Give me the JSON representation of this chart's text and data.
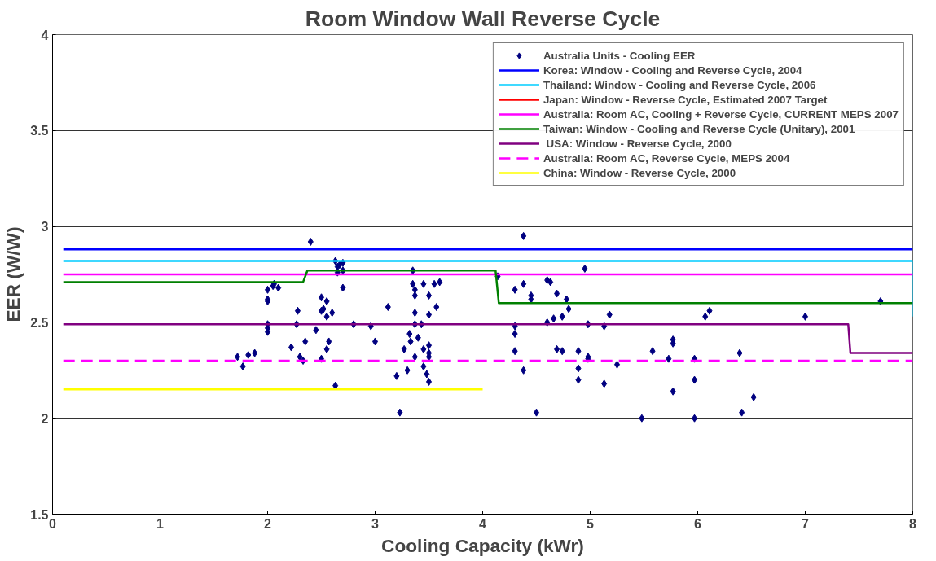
{
  "chart_data": {
    "type": "scatter",
    "title": "Room Window Wall Reverse Cycle",
    "xlabel": "Cooling Capacity (kWr)",
    "ylabel": "EER (W/W)",
    "xlim": [
      0,
      8
    ],
    "xticks": [
      0,
      1,
      2,
      3,
      4,
      5,
      6,
      7,
      8
    ],
    "ylim": [
      1.5,
      4
    ],
    "yticks": [
      1.5,
      2,
      2.5,
      3,
      3.5,
      4
    ],
    "grid": "y",
    "legend": "top right",
    "series": [
      {
        "name": "Australia Units - Cooling EER",
        "marker": "diamond",
        "color": "#000080",
        "x": [
          1.72,
          1.77,
          1.82,
          1.88,
          2.0,
          2.0,
          2.0,
          2.0,
          2.0,
          2.0,
          2.05,
          2.06,
          2.1,
          2.22,
          2.27,
          2.28,
          2.3,
          2.33,
          2.35,
          2.4,
          2.45,
          2.5,
          2.5,
          2.5,
          2.52,
          2.55,
          2.55,
          2.55,
          2.57,
          2.6,
          2.63,
          2.63,
          2.65,
          2.65,
          2.67,
          2.7,
          2.7,
          2.7,
          2.8,
          2.96,
          3.0,
          3.12,
          3.2,
          3.23,
          3.27,
          3.3,
          3.32,
          3.33,
          3.35,
          3.35,
          3.37,
          3.37,
          3.37,
          3.37,
          3.37,
          3.4,
          3.43,
          3.45,
          3.45,
          3.45,
          3.48,
          3.5,
          3.5,
          3.5,
          3.5,
          3.5,
          3.5,
          3.55,
          3.57,
          3.6,
          4.38,
          4.14,
          4.3,
          4.38,
          4.45,
          4.45,
          4.6,
          4.63,
          4.69,
          4.78,
          4.8,
          4.74,
          4.66,
          4.6,
          4.3,
          4.3,
          4.3,
          4.38,
          4.5,
          4.95,
          4.98,
          5.13,
          5.18,
          4.69,
          4.74,
          4.89,
          4.89,
          4.89,
          4.98,
          4.98,
          5.13,
          5.25,
          5.48,
          5.58,
          5.73,
          5.77,
          5.77,
          5.77,
          5.97,
          5.97,
          5.97,
          6.07,
          6.11,
          6.39,
          6.41,
          6.52,
          7.0,
          7.7
        ],
        "values": [
          2.32,
          2.27,
          2.33,
          2.34,
          2.45,
          2.47,
          2.49,
          2.61,
          2.62,
          2.67,
          2.69,
          2.7,
          2.68,
          2.37,
          2.49,
          2.56,
          2.32,
          2.3,
          2.4,
          2.92,
          2.46,
          2.31,
          2.56,
          2.63,
          2.57,
          2.61,
          2.53,
          2.36,
          2.4,
          2.55,
          2.17,
          2.82,
          2.76,
          2.79,
          2.8,
          2.81,
          2.77,
          2.68,
          2.49,
          2.48,
          2.4,
          2.58,
          2.22,
          2.03,
          2.36,
          2.25,
          2.44,
          2.4,
          2.77,
          2.7,
          2.64,
          2.67,
          2.55,
          2.49,
          2.32,
          2.42,
          2.49,
          2.27,
          2.36,
          2.7,
          2.23,
          2.19,
          2.32,
          2.34,
          2.38,
          2.54,
          2.64,
          2.7,
          2.58,
          2.71,
          2.95,
          2.74,
          2.67,
          2.7,
          2.64,
          2.62,
          2.72,
          2.71,
          2.65,
          2.62,
          2.57,
          2.53,
          2.52,
          2.5,
          2.48,
          2.44,
          2.35,
          2.25,
          2.03,
          2.78,
          2.49,
          2.48,
          2.54,
          2.36,
          2.35,
          2.35,
          2.26,
          2.2,
          2.32,
          2.31,
          2.18,
          2.28,
          2.0,
          2.35,
          2.31,
          2.41,
          2.39,
          2.14,
          2.31,
          2.2,
          2.0,
          2.53,
          2.56,
          2.34,
          2.03,
          2.11,
          2.53,
          2.61
        ]
      },
      {
        "name": "Korea: Window - Cooling and Reverse Cycle, 2004",
        "type": "line",
        "color": "#0000ff",
        "x": [
          0.1,
          8
        ],
        "values": [
          2.88,
          2.88
        ]
      },
      {
        "name": "Thailand: Window - Cooling and Reverse Cycle, 2006",
        "type": "line",
        "color": "#00ccff",
        "x": [
          0.1,
          8,
          8
        ],
        "values": [
          2.82,
          2.82,
          2.53
        ]
      },
      {
        "name": "Japan: Window - Reverse Cycle, Estimated 2007 Target",
        "type": "line",
        "color": "#ff0000",
        "values": [
          null,
          null
        ]
      },
      {
        "name": "Australia: Room AC, Cooling + Reverse Cycle, CURRENT MEPS 2007",
        "type": "line",
        "color": "#ff00ff",
        "x": [
          0.1,
          8
        ],
        "values": [
          2.75,
          2.75
        ]
      },
      {
        "name": "Taiwan: Window - Cooling and Reverse Cycle (Unitary), 2001",
        "type": "line",
        "color": "#008000",
        "x": [
          0.1,
          2.33,
          2.37,
          4.12,
          4.15,
          8
        ],
        "values": [
          2.71,
          2.71,
          2.77,
          2.77,
          2.6,
          2.6
        ]
      },
      {
        "name": " USA: Window - Reverse Cycle, 2000",
        "type": "line",
        "color": "#800080",
        "x": [
          0.1,
          7.4,
          7.42,
          8
        ],
        "values": [
          2.49,
          2.49,
          2.34,
          2.34
        ]
      },
      {
        "name": "Australia: Room AC, Reverse Cycle, MEPS 2004",
        "type": "line",
        "color": "#ff00ff",
        "line_style": "dashed",
        "x": [
          0.1,
          8
        ],
        "values": [
          2.3,
          2.3
        ]
      },
      {
        "name": "China: Window - Reverse Cycle, 2000",
        "type": "line",
        "color": "#ffff00",
        "x": [
          0.1,
          4.0
        ],
        "values": [
          2.15,
          2.15
        ]
      }
    ]
  }
}
